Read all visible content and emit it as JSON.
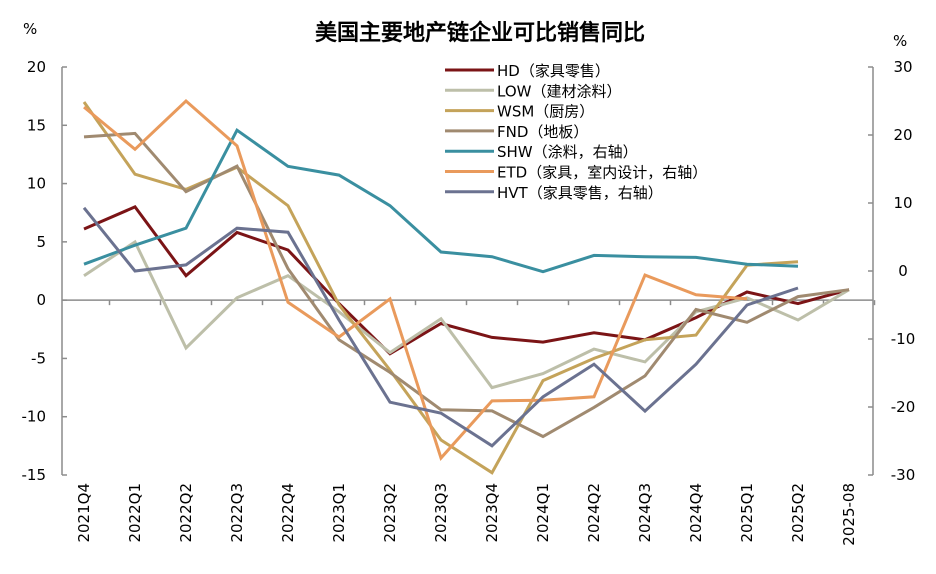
{
  "chart_data": {
    "type": "line",
    "title": "美国主要地产链企业可比销售同比",
    "ylabel_left": "%",
    "ylabel_right": "%",
    "ylim_left": [
      -15,
      20
    ],
    "ylim_right": [
      -30,
      30
    ],
    "yticks_left": [
      20,
      15,
      10,
      5,
      0,
      -5,
      -10,
      -15
    ],
    "yticks_right": [
      30,
      20,
      10,
      0,
      -10,
      -20,
      -30
    ],
    "legend_position": "top-right",
    "grid": false,
    "categories": [
      "2021Q4",
      "2022Q1",
      "2022Q2",
      "2022Q3",
      "2022Q4",
      "2023Q1",
      "2023Q2",
      "2023Q3",
      "2023Q4",
      "2024Q1",
      "2024Q2",
      "2024Q3",
      "2024Q4",
      "2025Q1",
      "2025Q2",
      "2025-08"
    ],
    "series": [
      {
        "name": "HD（家具零售）",
        "axis": "left",
        "color": "#7b1416",
        "values": [
          6.1,
          8.0,
          2.1,
          5.8,
          4.3,
          -0.3,
          -4.6,
          -2.0,
          -3.2,
          -3.6,
          -2.8,
          -3.4,
          -1.5,
          0.7,
          -0.3,
          0.9
        ]
      },
      {
        "name": "LOW（建材涂料）",
        "axis": "left",
        "color": "#bdbfa9",
        "values": [
          2.1,
          5.0,
          -4.1,
          0.2,
          2.1,
          -1.0,
          -4.5,
          -1.6,
          -7.5,
          -6.3,
          -4.2,
          -5.3,
          -1.0,
          0.2,
          -1.7,
          0.9
        ]
      },
      {
        "name": "WSM（厨房）",
        "axis": "left",
        "color": "#c4a35a",
        "values": [
          17.0,
          10.8,
          9.5,
          11.4,
          8.1,
          -0.4,
          -6.0,
          -12.0,
          -14.8,
          -6.9,
          -5.0,
          -3.4,
          -3.0,
          3.0,
          3.3,
          null
        ]
      },
      {
        "name": "FND（地板）",
        "axis": "left",
        "color": "#a08a70",
        "values": [
          14.0,
          14.3,
          9.3,
          11.5,
          2.7,
          -3.4,
          -6.2,
          -9.4,
          -9.5,
          -11.7,
          -9.2,
          -6.5,
          -0.8,
          -1.9,
          0.3,
          0.9
        ]
      },
      {
        "name": "SHW（涂料，右轴）",
        "axis": "right",
        "color": "#3a8fa0",
        "values": [
          1.0,
          3.8,
          6.3,
          20.7,
          15.4,
          14.1,
          9.6,
          2.8,
          2.1,
          -0.1,
          2.3,
          2.1,
          2.0,
          1.0,
          0.7,
          null
        ]
      },
      {
        "name": "ETD（家具，室内设计，右轴）",
        "axis": "right",
        "color": "#e99a5c",
        "values": [
          24.1,
          17.9,
          25.0,
          18.4,
          -4.6,
          -9.7,
          -4.1,
          -27.5,
          -19.1,
          -19.0,
          -18.5,
          -0.6,
          -3.5,
          -4.1,
          null,
          null
        ]
      },
      {
        "name": "HVT（家具零售，右轴）",
        "axis": "right",
        "color": "#6b7290",
        "values": [
          9.3,
          0.0,
          0.9,
          6.3,
          5.7,
          -7.2,
          -19.3,
          -20.9,
          -25.7,
          -18.5,
          -13.7,
          -20.6,
          -13.7,
          -5.0,
          -2.5,
          null
        ]
      }
    ]
  }
}
